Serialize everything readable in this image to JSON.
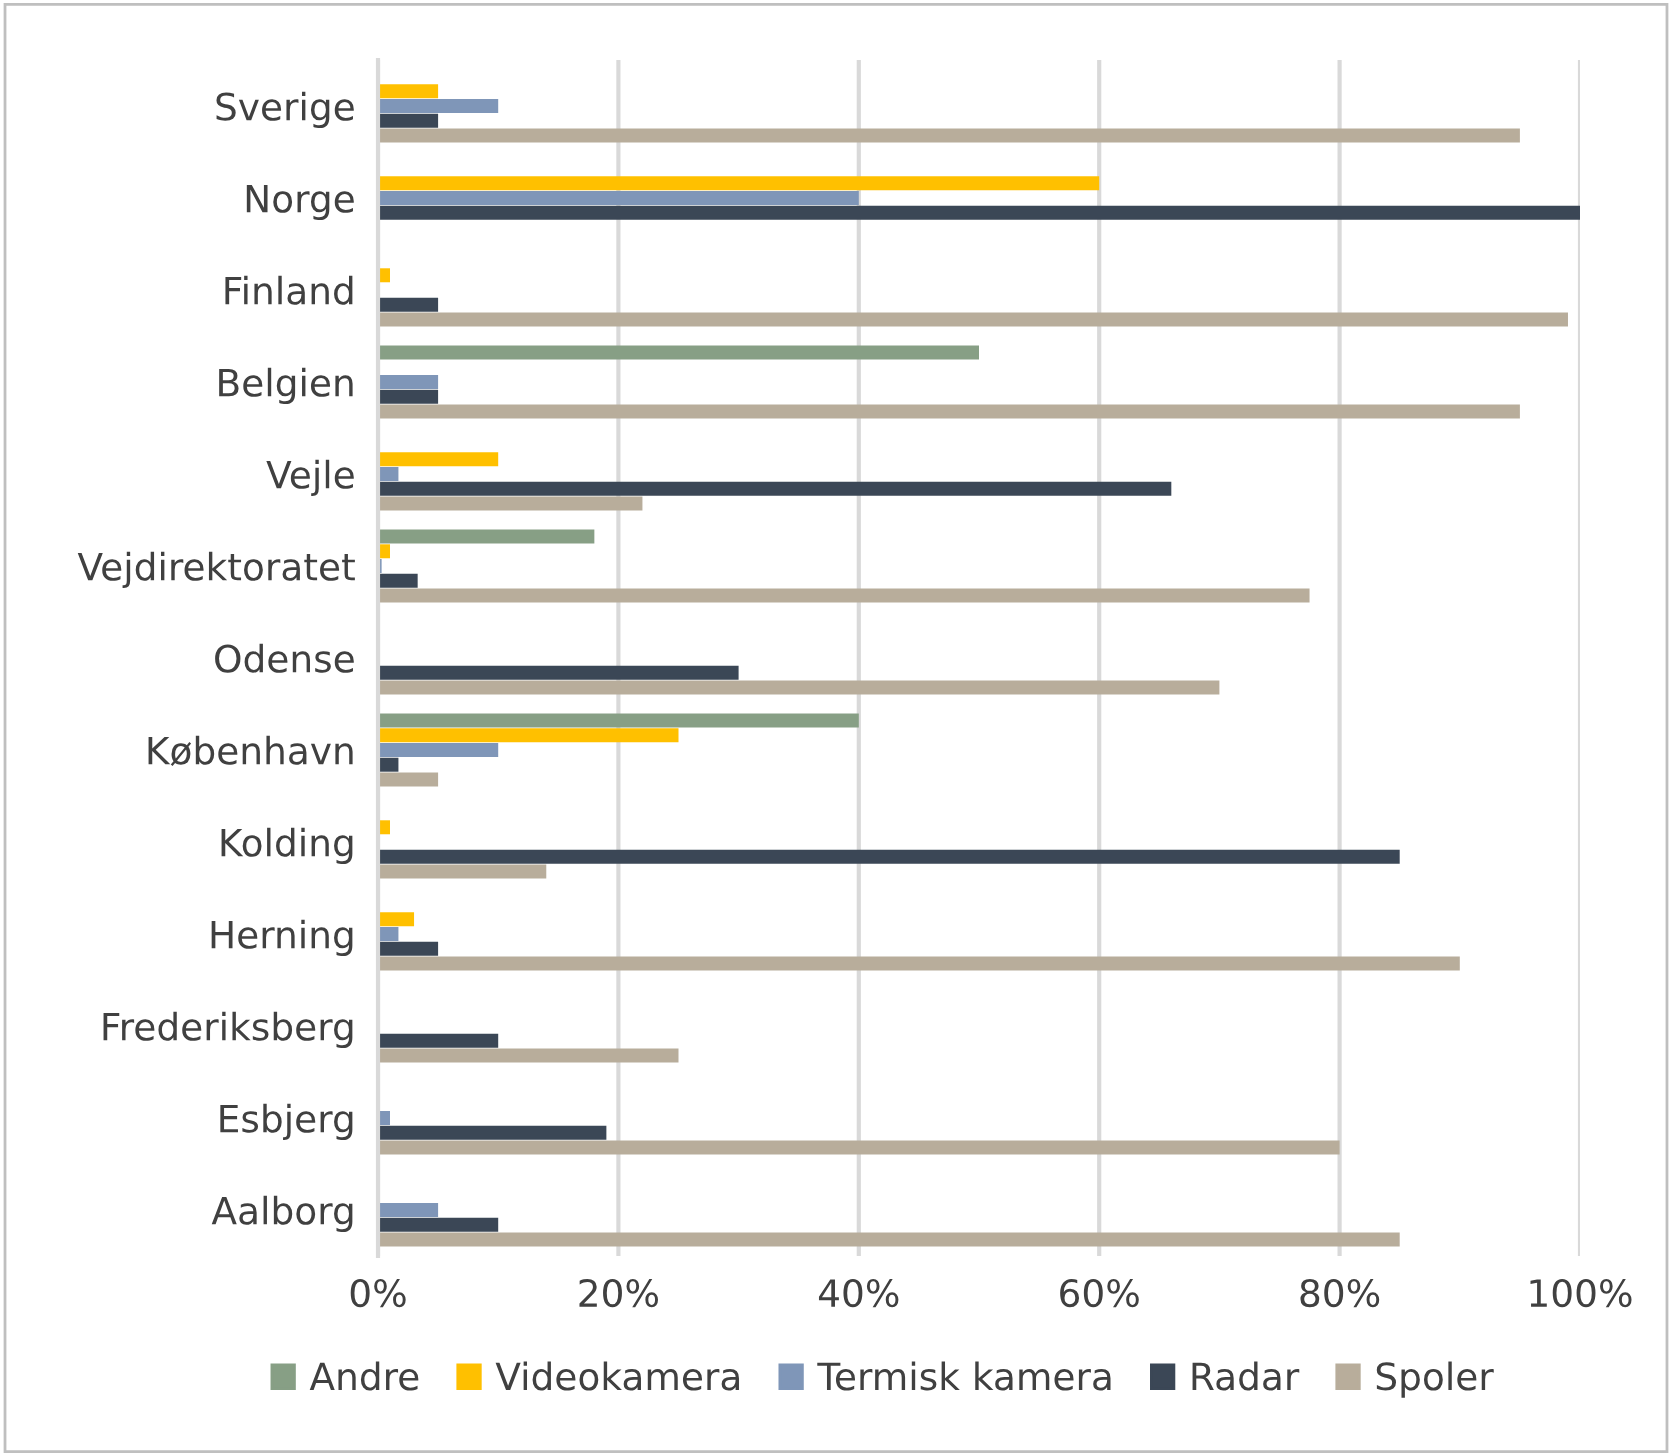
{
  "chart_data": {
    "type": "bar",
    "orientation": "horizontal",
    "categories": [
      "Sverige",
      "Norge",
      "Finland",
      "Belgien",
      "Vejle",
      "Vejdirektoratet",
      "Odense",
      "København",
      "Kolding",
      "Herning",
      "Frederiksberg",
      "Esbjerg",
      "Aalborg"
    ],
    "series": [
      {
        "name": "Andre",
        "color": "#879f85",
        "values": [
          0,
          0,
          0,
          50,
          0,
          18,
          0,
          40,
          0,
          0,
          0,
          0,
          0
        ]
      },
      {
        "name": "Videokamera",
        "color": "#ffc000",
        "values": [
          5,
          60,
          1,
          0,
          10,
          1,
          0,
          25,
          1,
          3,
          0,
          0,
          0
        ]
      },
      {
        "name": "Termisk kamera",
        "color": "#7f96b8",
        "values": [
          10,
          40,
          0,
          5,
          1.7,
          0.3,
          0,
          10,
          0,
          1.7,
          0,
          1,
          5
        ]
      },
      {
        "name": "Radar",
        "color": "#3b4756",
        "values": [
          5,
          100,
          5,
          5,
          66,
          3.3,
          30,
          1.7,
          85,
          5,
          10,
          19,
          10
        ]
      },
      {
        "name": "Spoler",
        "color": "#b8ad9b",
        "values": [
          95,
          0,
          99,
          95,
          22,
          77.5,
          70,
          5,
          14,
          90,
          25,
          80,
          85
        ]
      }
    ],
    "xlim": [
      0,
      100
    ],
    "xticks": [
      {
        "value": 0,
        "label": "0%"
      },
      {
        "value": 20,
        "label": "20%"
      },
      {
        "value": 40,
        "label": "40%"
      },
      {
        "value": 60,
        "label": "60%"
      },
      {
        "value": 80,
        "label": "80%"
      },
      {
        "value": 100,
        "label": "100%"
      }
    ],
    "grid": "x",
    "legend": "bottom"
  }
}
